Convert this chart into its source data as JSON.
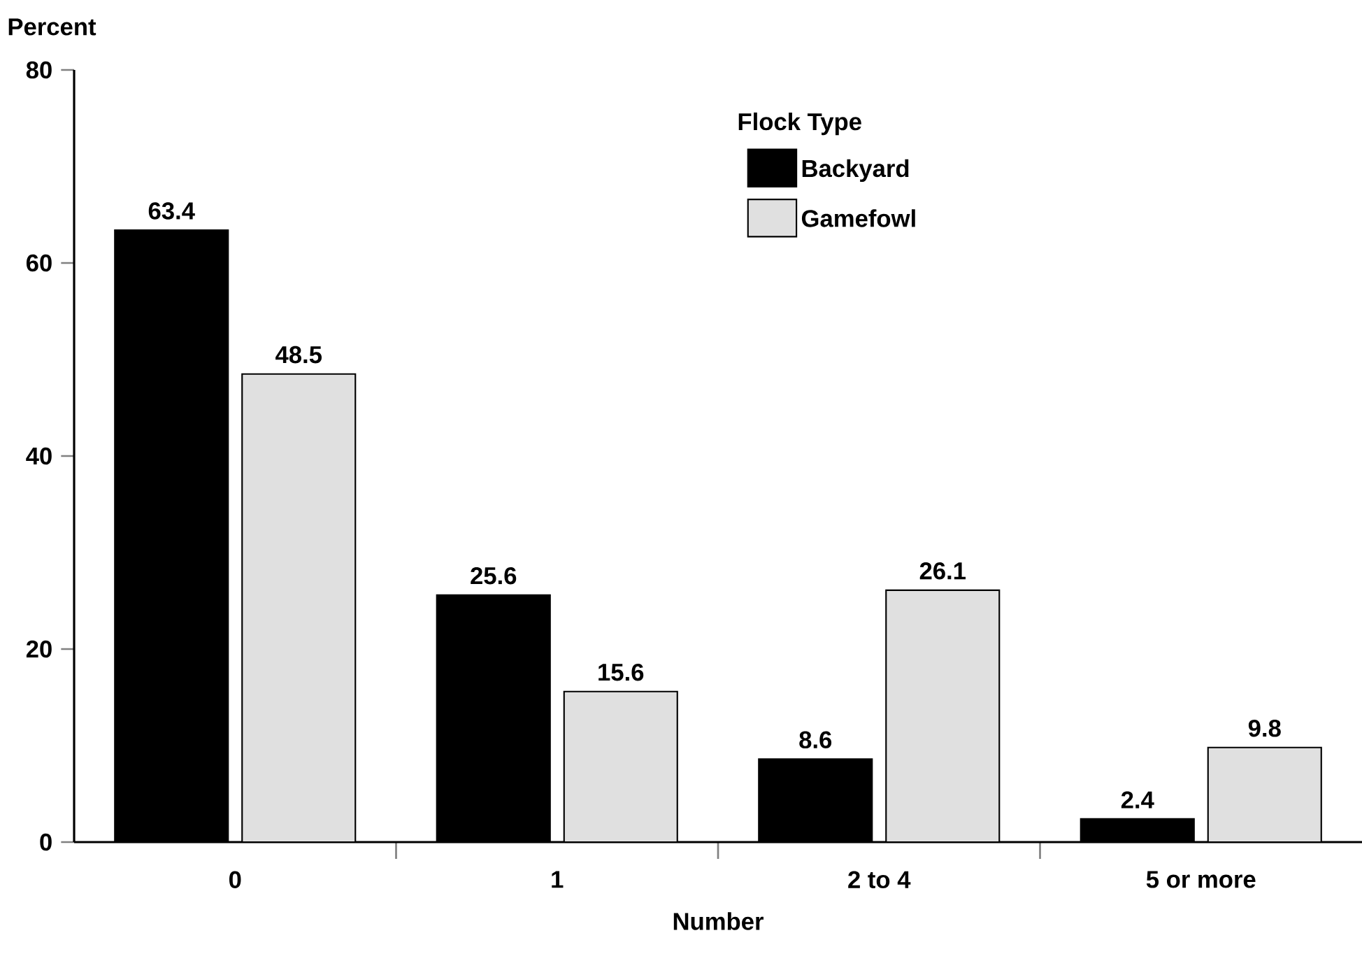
{
  "chart_data": {
    "type": "bar",
    "xlabel": "Number",
    "ylabel": "Percent",
    "legend_title": "Flock Type",
    "categories": [
      "0",
      "1",
      "2 to 4",
      "5 or more"
    ],
    "series": [
      {
        "name": "Backyard",
        "color": "#000000",
        "values": [
          63.4,
          25.6,
          8.6,
          2.4
        ]
      },
      {
        "name": "Gamefowl",
        "color": "#e0e0e0",
        "values": [
          48.5,
          15.6,
          26.1,
          9.8
        ]
      }
    ],
    "ylim": [
      0,
      80
    ],
    "yticks": [
      0,
      20,
      40,
      60,
      80
    ],
    "data_labels": true,
    "grid": false,
    "legend": "top right"
  }
}
